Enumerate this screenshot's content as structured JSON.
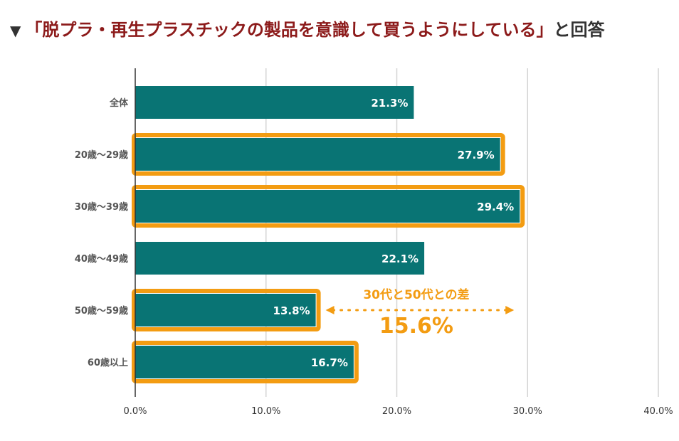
{
  "title": {
    "marker": "▼",
    "main": "「脱プラ・再生プラスチックの製品を意識して買うようにしている」",
    "suffix": "と回答"
  },
  "colors": {
    "bar": "#097474",
    "highlight": "#f39c12",
    "grid": "#d3d3d3",
    "axis": "#333333"
  },
  "annotation": {
    "label": "30代と50代との差",
    "value": "15.6%"
  },
  "chart_data": {
    "type": "bar",
    "orientation": "horizontal",
    "categories": [
      "全体",
      "20歳～29歳",
      "30歳～39歳",
      "40歳～49歳",
      "50歳～59歳",
      "60歳以上"
    ],
    "values": [
      21.3,
      27.9,
      29.4,
      22.1,
      13.8,
      16.7
    ],
    "value_labels": [
      "21.3%",
      "27.9%",
      "29.4%",
      "22.1%",
      "13.8%",
      "16.7%"
    ],
    "highlighted": [
      false,
      true,
      true,
      false,
      true,
      true
    ],
    "xlim": [
      0,
      40
    ],
    "xticks": [
      0,
      10,
      20,
      30,
      40
    ],
    "xtick_labels": [
      "0.0%",
      "10.0%",
      "20.0%",
      "30.0%",
      "40.0%"
    ],
    "grid": true
  }
}
